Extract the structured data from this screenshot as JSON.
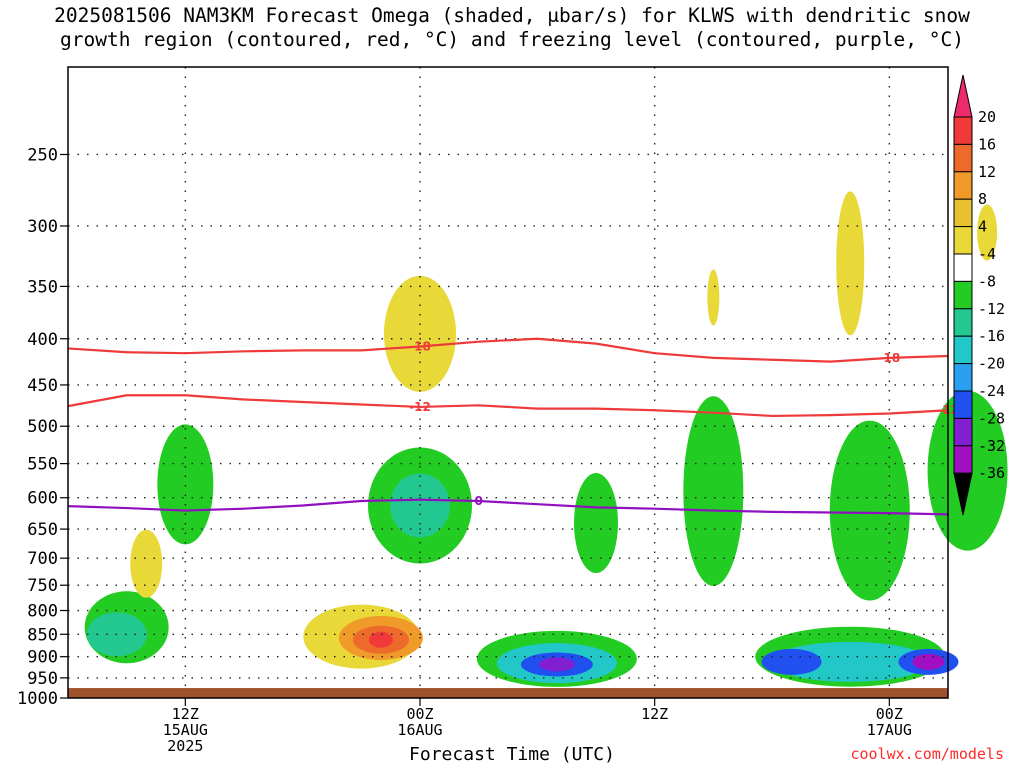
{
  "title_lines": [
    "2025081506 NAM3KM Forecast Omega (shaded, μbar/s) for KLWS with dendritic snow",
    "growth region (contoured, red, °C) and freezing level (contoured, purple, °C)"
  ],
  "credit": "coolwx.com/models",
  "chart_data": {
    "type": "heatmap",
    "title": "2025081506 NAM3KM Forecast Omega (shaded, μbar/s) for KLWS with dendritic snow growth region (contoured, red, °C) and freezing level (contoured, purple, °C)",
    "xlabel": "Forecast Time (UTC)",
    "ylabel": "",
    "x_range_hours_utc": [
      6,
      51
    ],
    "y_axis": "pressure (hPa), inverted log scale",
    "yticks": [
      250,
      300,
      350,
      400,
      450,
      500,
      550,
      600,
      650,
      700,
      750,
      800,
      850,
      900,
      950,
      1000
    ],
    "ylim": [
      200,
      1000
    ],
    "xticks": [
      {
        "hour": 12,
        "lines": [
          "12Z",
          "15AUG",
          "2025"
        ]
      },
      {
        "hour": 24,
        "lines": [
          "00Z",
          "16AUG"
        ]
      },
      {
        "hour": 36,
        "lines": [
          "12Z"
        ]
      },
      {
        "hour": 48,
        "lines": [
          "00Z",
          "17AUG"
        ]
      },
      {
        "hour": 60,
        "lines": [
          "12Z"
        ]
      }
    ],
    "grid": true,
    "colorbar": {
      "labels": [
        "20",
        "16",
        "12",
        "8",
        "4",
        "-4",
        "-8",
        "-12",
        "-16",
        "-20",
        "-24",
        "-28",
        "-32",
        "-36"
      ],
      "colors": [
        "#ee2a6e",
        "#f03a3a",
        "#ee6a2a",
        "#f09a2a",
        "#e8c030",
        "#e8d838",
        "#ffffff",
        "#22cc22",
        "#22c890",
        "#22c8c8",
        "#2aa0f0",
        "#2050f0",
        "#8020d0",
        "#a010c0",
        "#a0a0a0",
        "#000000"
      ]
    },
    "contours": [
      {
        "label": "-18",
        "color": "#ee3a3a",
        "points": [
          [
            6,
            410
          ],
          [
            9,
            414
          ],
          [
            12,
            415
          ],
          [
            15,
            413
          ],
          [
            18,
            412
          ],
          [
            21,
            412
          ],
          [
            24,
            408
          ],
          [
            27,
            403
          ],
          [
            30,
            400
          ],
          [
            33,
            405
          ],
          [
            36,
            415
          ],
          [
            39,
            420
          ],
          [
            42,
            422
          ],
          [
            45,
            424
          ],
          [
            48,
            420
          ],
          [
            51,
            418
          ],
          [
            54,
            420
          ],
          [
            57,
            423
          ],
          [
            60,
            426
          ],
          [
            63,
            435
          ],
          [
            66,
            440
          ]
        ]
      },
      {
        "label": "-12",
        "color": "#ee3a3a",
        "points": [
          [
            6,
            475
          ],
          [
            9,
            462
          ],
          [
            12,
            462
          ],
          [
            15,
            467
          ],
          [
            18,
            470
          ],
          [
            21,
            473
          ],
          [
            24,
            476
          ],
          [
            27,
            474
          ],
          [
            30,
            478
          ],
          [
            33,
            478
          ],
          [
            36,
            480
          ],
          [
            39,
            483
          ],
          [
            42,
            487
          ],
          [
            45,
            486
          ],
          [
            48,
            484
          ],
          [
            51,
            480
          ],
          [
            54,
            483
          ],
          [
            57,
            487
          ],
          [
            60,
            495
          ],
          [
            61,
            500
          ],
          [
            63,
            492
          ],
          [
            66,
            490
          ]
        ]
      },
      {
        "label": "0",
        "color": "#9010c0",
        "points": [
          [
            6,
            613
          ],
          [
            9,
            616
          ],
          [
            12,
            620
          ],
          [
            15,
            617
          ],
          [
            18,
            612
          ],
          [
            21,
            605
          ],
          [
            24,
            603
          ],
          [
            27,
            605
          ],
          [
            30,
            610
          ],
          [
            33,
            615
          ],
          [
            36,
            617
          ],
          [
            39,
            620
          ],
          [
            42,
            622
          ],
          [
            45,
            623
          ],
          [
            48,
            624
          ],
          [
            51,
            626
          ],
          [
            54,
            630
          ],
          [
            57,
            632
          ],
          [
            59,
            636
          ],
          [
            60,
            640
          ],
          [
            62,
            640
          ],
          [
            63,
            640
          ],
          [
            64,
            630
          ],
          [
            65,
            628
          ],
          [
            66,
            628
          ]
        ]
      }
    ],
    "omega_regions": [
      {
        "center": [
          9,
          850
        ],
        "value": -16
      },
      {
        "center": [
          22,
          860
        ],
        "value": 16
      },
      {
        "center": [
          31,
          918
        ],
        "value": -28
      },
      {
        "center": [
          50,
          915
        ],
        "value": -32
      },
      {
        "center": [
          42,
          910
        ],
        "value": -24
      },
      {
        "center": [
          24,
          620
        ],
        "value": -12
      },
      {
        "center": [
          24,
          385
        ],
        "value": 4
      },
      {
        "center": [
          46,
          330
        ],
        "value": 4
      },
      {
        "center": [
          64,
          400
        ],
        "value": 4
      }
    ]
  }
}
